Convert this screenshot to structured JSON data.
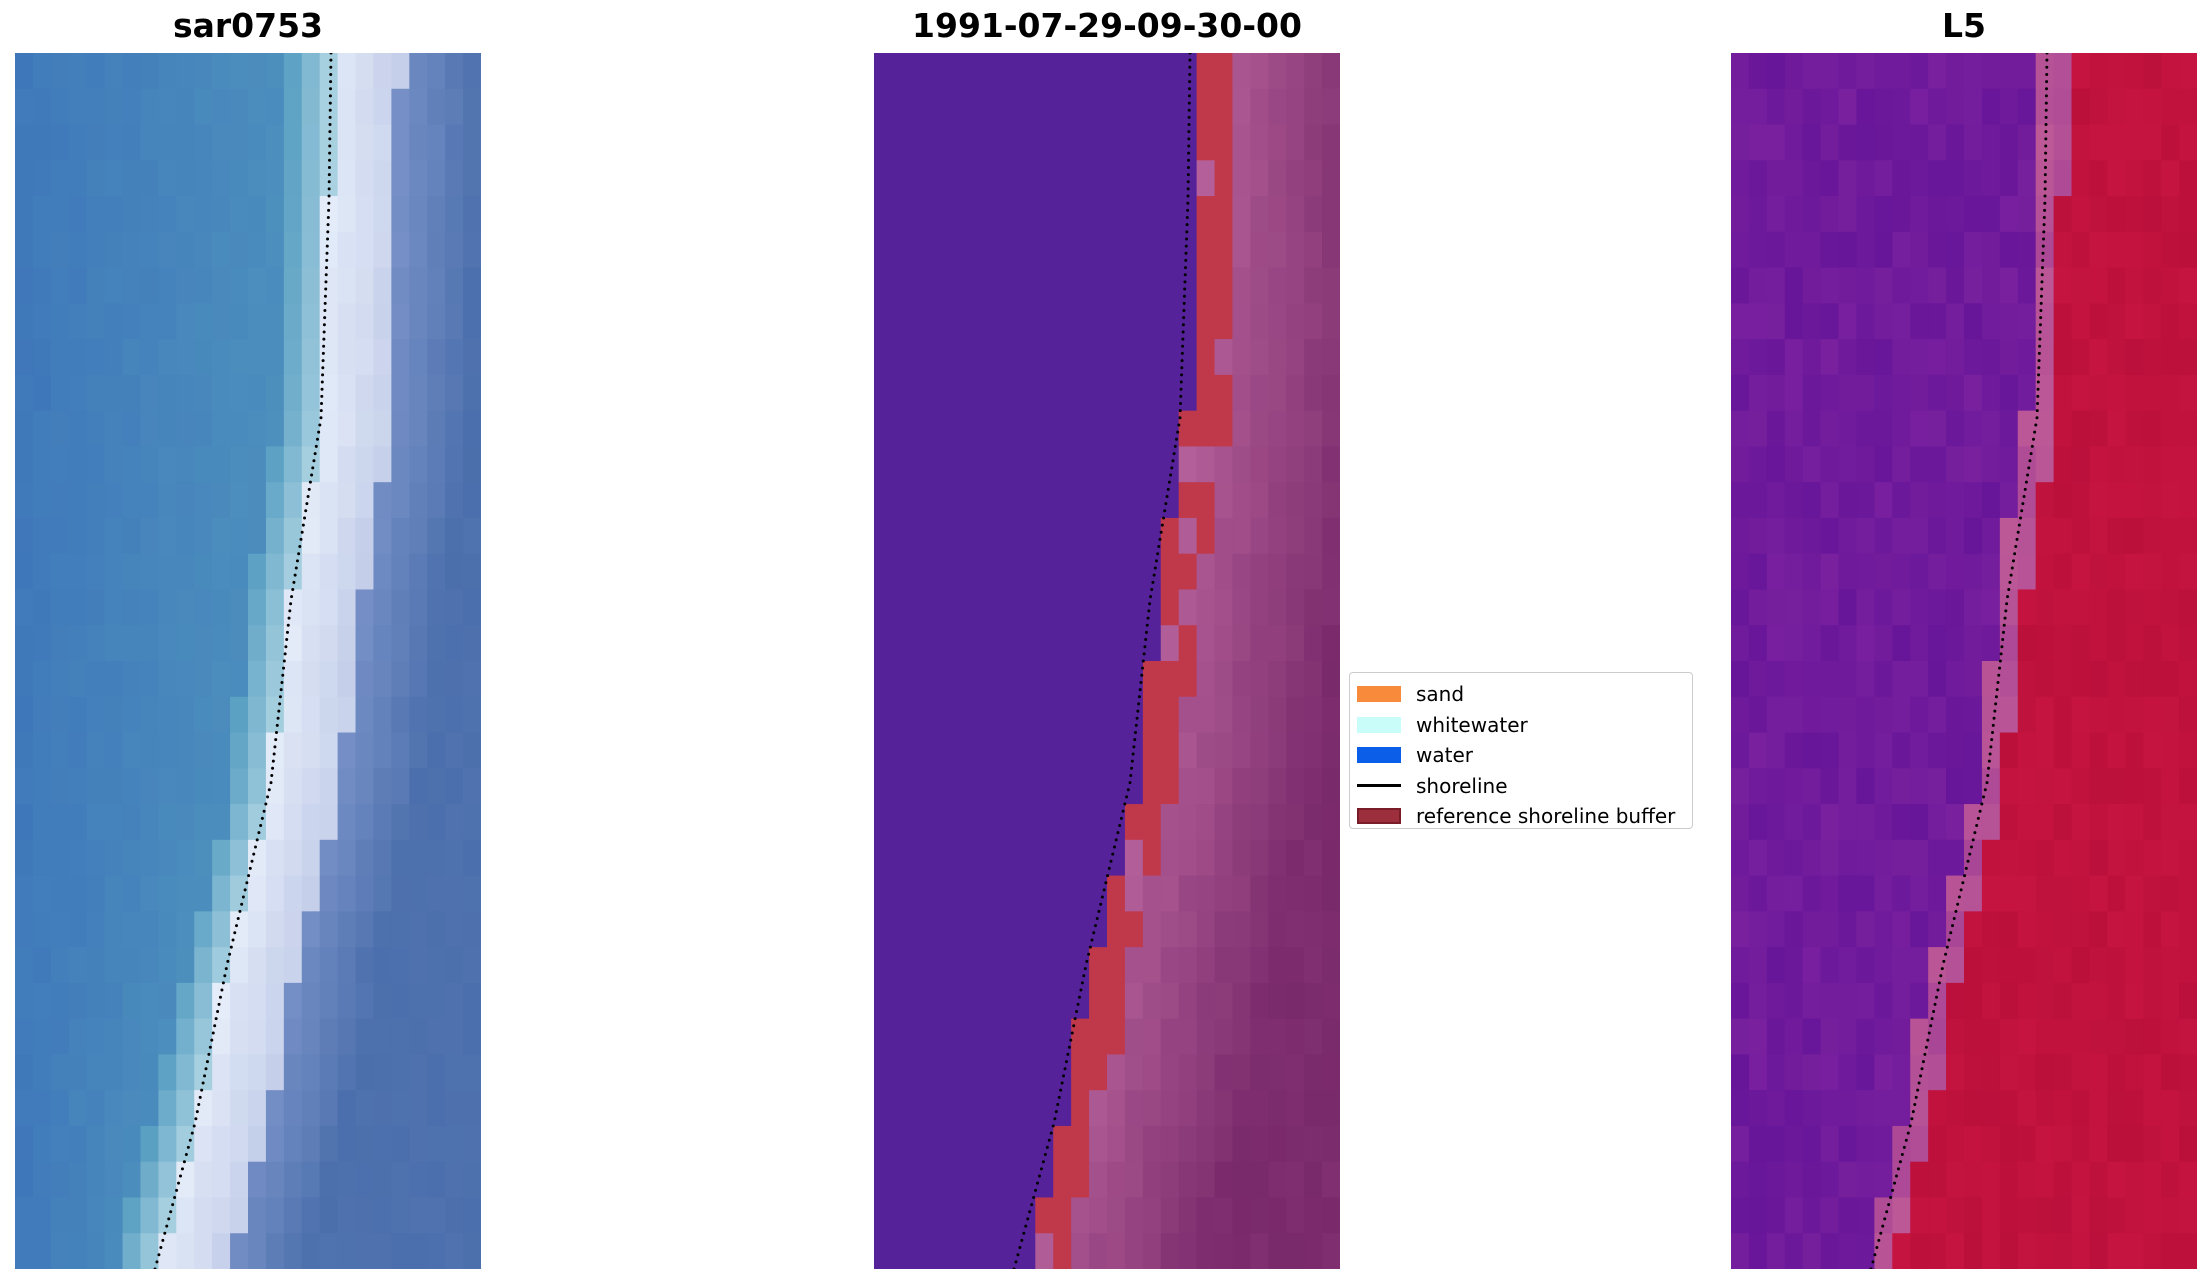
{
  "panels": [
    {
      "title": "sar0753"
    },
    {
      "title": "1991-07-29-09-30-00"
    },
    {
      "title": "L5"
    }
  ],
  "legend": {
    "items": [
      {
        "label": "sand",
        "color": "#f88b3b",
        "type": "patch"
      },
      {
        "label": "whitewater",
        "color": "#c8fdf9",
        "type": "patch"
      },
      {
        "label": "water",
        "color": "#0a5ee8",
        "type": "patch"
      },
      {
        "label": "shoreline",
        "color": "#000000",
        "type": "line"
      },
      {
        "label": "reference shoreline buffer",
        "color": "#9c2f3b",
        "type": "patch",
        "edge": "#7a1c28"
      }
    ]
  },
  "colors": {
    "water_rgb": "#3f84c0",
    "whitewater_rgb": "#e6ecf6",
    "land_rgb": "#5b7cb0",
    "classified_water": "#55229a",
    "classified_land": "#9c4a8e",
    "buffer": "#c0394a",
    "index_water": "#72199f",
    "index_land": "#c4103f"
  }
}
